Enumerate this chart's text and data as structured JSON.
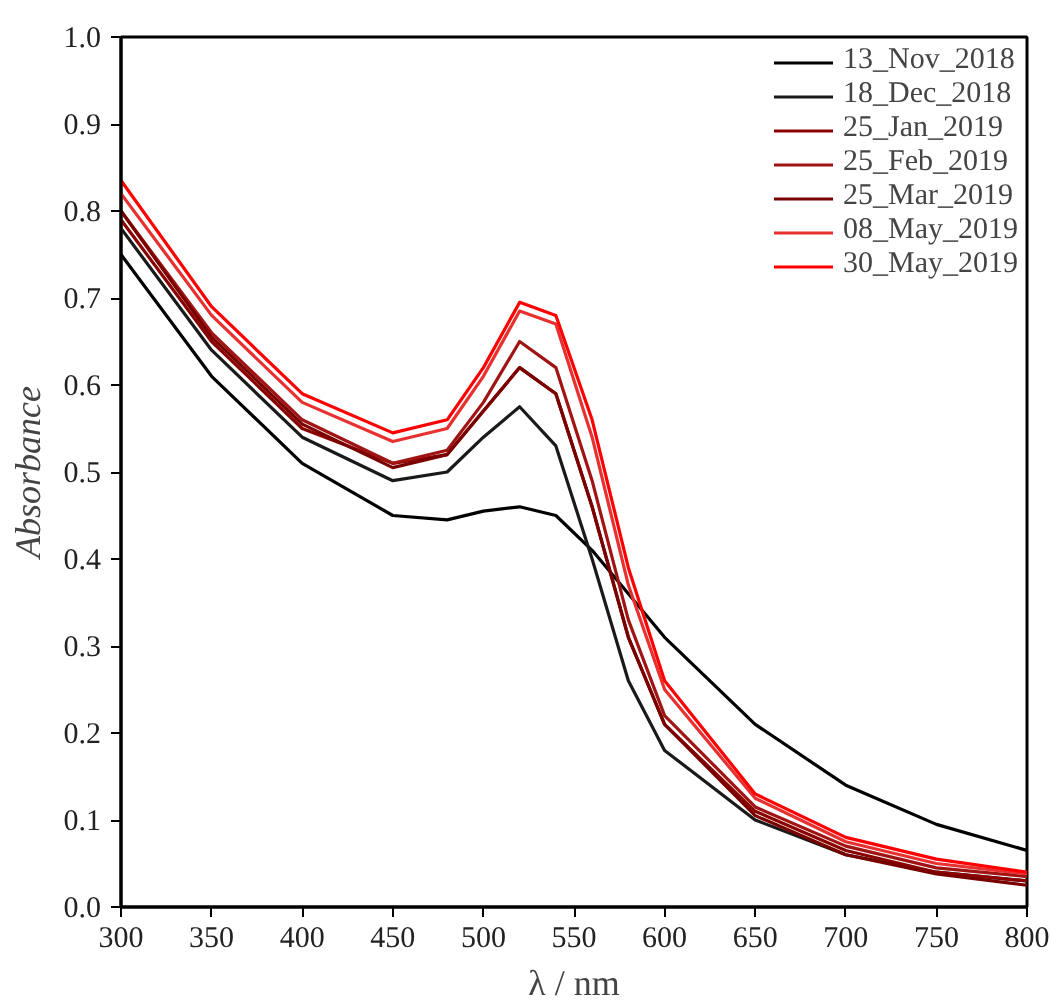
{
  "chart_data": {
    "type": "line",
    "xlabel": "λ / nm",
    "ylabel": "Absorbance",
    "x": [
      300,
      350,
      400,
      450,
      480,
      500,
      520,
      540,
      560,
      580,
      600,
      650,
      700,
      750,
      800
    ],
    "series": [
      {
        "name": "13_Nov_2018",
        "color": "#000000",
        "values": [
          0.75,
          0.61,
          0.51,
          0.45,
          0.445,
          0.455,
          0.46,
          0.45,
          0.41,
          0.36,
          0.31,
          0.21,
          0.14,
          0.095,
          0.065
        ]
      },
      {
        "name": "18_Dec_2018",
        "color": "#1a1a1a",
        "values": [
          0.78,
          0.64,
          0.54,
          0.49,
          0.5,
          0.54,
          0.575,
          0.53,
          0.4,
          0.26,
          0.18,
          0.1,
          0.06,
          0.04,
          0.03
        ]
      },
      {
        "name": "25_Jan_2019",
        "color": "#8b0000",
        "values": [
          0.79,
          0.65,
          0.55,
          0.51,
          0.52,
          0.57,
          0.62,
          0.59,
          0.46,
          0.31,
          0.21,
          0.11,
          0.065,
          0.04,
          0.03
        ]
      },
      {
        "name": "25_Feb_2019",
        "color": "#a01414",
        "values": [
          0.8,
          0.66,
          0.56,
          0.51,
          0.525,
          0.58,
          0.65,
          0.62,
          0.49,
          0.33,
          0.22,
          0.115,
          0.07,
          0.045,
          0.035
        ]
      },
      {
        "name": "25_Mar_2019",
        "color": "#7a0000",
        "values": [
          0.8,
          0.655,
          0.555,
          0.505,
          0.52,
          0.57,
          0.62,
          0.59,
          0.46,
          0.31,
          0.21,
          0.105,
          0.06,
          0.038,
          0.025
        ]
      },
      {
        "name": "08_May_2019",
        "color": "#e83030",
        "values": [
          0.82,
          0.68,
          0.58,
          0.535,
          0.55,
          0.61,
          0.685,
          0.67,
          0.54,
          0.37,
          0.25,
          0.125,
          0.075,
          0.05,
          0.038
        ]
      },
      {
        "name": "30_May_2019",
        "color": "#ff0000",
        "values": [
          0.835,
          0.69,
          0.59,
          0.545,
          0.56,
          0.62,
          0.695,
          0.68,
          0.56,
          0.39,
          0.26,
          0.13,
          0.08,
          0.055,
          0.04
        ]
      }
    ],
    "xlim": [
      300,
      800
    ],
    "ylim": [
      0,
      1
    ],
    "xticks": [
      300,
      350,
      400,
      450,
      500,
      550,
      600,
      650,
      700,
      750,
      800
    ],
    "yticks": [
      {
        "value": 0,
        "label": "0.0"
      },
      {
        "value": 0.1,
        "label": "0.1"
      },
      {
        "value": 0.2,
        "label": "0.2"
      },
      {
        "value": 0.3,
        "label": "0.3"
      },
      {
        "value": 0.4,
        "label": "0.4"
      },
      {
        "value": 0.5,
        "label": "0.5"
      },
      {
        "value": 0.6,
        "label": "0.6"
      },
      {
        "value": 0.7,
        "label": "0.7"
      },
      {
        "value": 0.8,
        "label": "0.8"
      },
      {
        "value": 0.9,
        "label": "0.9"
      },
      {
        "value": 1,
        "label": "1.0"
      }
    ],
    "legend": "top right",
    "grid": false,
    "marker": "none",
    "line_style": "solid"
  }
}
